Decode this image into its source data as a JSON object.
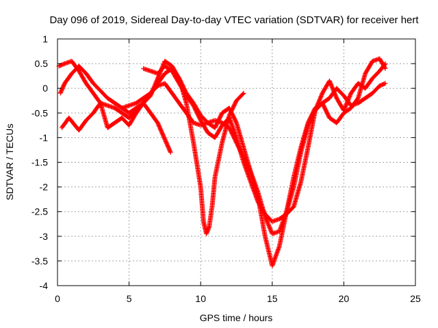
{
  "chart_data": {
    "type": "scatter",
    "title": "Day 096 of 2019, Sidereal Day-to-day VTEC variation (SDTVAR) for receiver hert",
    "xlabel": "GPS time / hours",
    "ylabel": "SDTVAR / TECUs",
    "xlim": [
      0,
      25
    ],
    "ylim": [
      -4,
      1
    ],
    "x_ticks": [
      0,
      5,
      10,
      15,
      20,
      25
    ],
    "y_ticks": [
      -4,
      -3.5,
      -3,
      -2.5,
      -2,
      -1.5,
      -1,
      -0.5,
      0,
      0.5,
      1
    ],
    "x_tick_labels": [
      "0",
      "5",
      "10",
      "15",
      "20",
      "25"
    ],
    "y_tick_labels": [
      "-4",
      "-3.5",
      "-3",
      "-2.5",
      "-2",
      "-1.5",
      "-1",
      "-0.5",
      "0",
      "0.5",
      "1"
    ],
    "grid": true,
    "marker": "+",
    "marker_color": "#ff0000",
    "series": [
      {
        "x": [
          0.1,
          0.5,
          1.0,
          1.5,
          2.0,
          2.5,
          3.0,
          3.5,
          4.0,
          4.5,
          5.0,
          5.5,
          6.0,
          6.5,
          7.0,
          7.3,
          7.6,
          7.9
        ],
        "y": [
          0.45,
          0.5,
          0.55,
          0.35,
          0.1,
          -0.1,
          -0.3,
          -0.35,
          -0.4,
          -0.5,
          -0.6,
          -0.45,
          -0.3,
          -0.5,
          -0.7,
          -0.9,
          -1.1,
          -1.3
        ]
      },
      {
        "x": [
          0.2,
          0.5,
          1.0,
          1.5,
          2.0,
          2.5,
          3.0,
          3.5,
          4.0,
          4.5,
          5.0,
          5.5,
          6.0,
          6.5,
          7.0,
          7.5,
          8.0,
          8.5,
          9.0,
          9.5,
          10.0,
          10.2,
          10.4,
          10.6,
          10.8,
          11.0,
          11.5,
          12.0,
          12.5,
          13.0
        ],
        "y": [
          -0.1,
          0.1,
          0.3,
          0.45,
          0.3,
          0.1,
          -0.05,
          -0.2,
          -0.3,
          -0.4,
          -0.5,
          -0.4,
          -0.3,
          -0.15,
          0.2,
          0.55,
          0.45,
          0.2,
          -0.3,
          -1.1,
          -2.0,
          -2.7,
          -2.95,
          -2.8,
          -2.4,
          -1.8,
          -1.1,
          -0.55,
          -0.25,
          -0.1
        ]
      },
      {
        "x": [
          0.3,
          0.8,
          1.5,
          2.0,
          2.5,
          3.0,
          3.5,
          4.0,
          4.5,
          5.0,
          5.5,
          6.0,
          6.5,
          7.0,
          7.5,
          8.0,
          8.5,
          9.0,
          9.5,
          10.0,
          10.5,
          11.0,
          11.5,
          12.0,
          12.5,
          13.0,
          13.5,
          14.0,
          14.5,
          15.0,
          15.5,
          16.0,
          16.5,
          17.0,
          17.5,
          18.0,
          18.5,
          19.0,
          19.5,
          20.0,
          20.5,
          21.0,
          21.5,
          22.0,
          22.5,
          22.9
        ],
        "y": [
          -0.8,
          -0.6,
          -0.85,
          -0.65,
          -0.5,
          -0.3,
          -0.8,
          -0.7,
          -0.6,
          -0.75,
          -0.5,
          -0.3,
          -0.1,
          0.1,
          0.3,
          0.4,
          0.2,
          -0.1,
          -0.3,
          -0.55,
          -0.7,
          -0.8,
          -0.5,
          -0.4,
          -0.7,
          -1.2,
          -1.7,
          -2.2,
          -3.0,
          -3.6,
          -3.2,
          -2.5,
          -1.8,
          -1.2,
          -0.7,
          -0.4,
          -0.3,
          -0.6,
          -0.7,
          -0.5,
          -0.4,
          -0.2,
          0.3,
          0.55,
          0.6,
          0.4
        ]
      },
      {
        "x": [
          4.5,
          5.0,
          5.5,
          6.0,
          6.5,
          7.0,
          7.5,
          8.0,
          8.5,
          9.0,
          9.5,
          10.0,
          10.5,
          11.0,
          11.5,
          12.0,
          12.5,
          13.0,
          13.5,
          14.0,
          14.5,
          15.0,
          15.5,
          16.0,
          16.5,
          17.0,
          17.5,
          18.0,
          18.5,
          19.0,
          19.5,
          20.0,
          20.5,
          21.0,
          21.5,
          22.0,
          22.5,
          22.9
        ],
        "y": [
          -0.4,
          -0.35,
          -0.3,
          -0.2,
          -0.1,
          0.05,
          0.1,
          -0.1,
          -0.3,
          -0.5,
          -0.7,
          -0.75,
          -0.7,
          -0.65,
          -0.7,
          -0.8,
          -1.1,
          -1.4,
          -1.7,
          -2.1,
          -2.6,
          -2.95,
          -2.9,
          -2.5,
          -2.0,
          -1.3,
          -0.75,
          -0.45,
          -0.3,
          -0.2,
          0.0,
          -0.15,
          -0.35,
          -0.3,
          -0.2,
          -0.1,
          0.05,
          0.1
        ]
      },
      {
        "x": [
          6.0,
          6.5,
          7.0,
          7.5,
          8.0,
          8.5,
          9.0,
          9.5,
          10.0,
          10.5,
          11.0,
          11.5,
          12.0,
          12.5,
          13.0,
          13.5,
          14.0,
          14.5,
          15.0,
          15.5,
          16.0,
          16.5,
          17.0,
          17.5,
          18.0,
          18.5,
          19.0,
          19.5,
          20.0,
          20.5,
          21.0,
          21.5,
          22.0,
          22.5,
          22.9
        ],
        "y": [
          0.4,
          0.35,
          0.3,
          0.45,
          0.35,
          0.1,
          -0.15,
          -0.35,
          -0.65,
          -0.9,
          -1.0,
          -0.75,
          -0.6,
          -1.0,
          -1.5,
          -1.9,
          -2.3,
          -2.55,
          -2.7,
          -2.65,
          -2.55,
          -2.4,
          -1.9,
          -1.2,
          -0.45,
          -0.1,
          0.15,
          -0.2,
          -0.45,
          -0.1,
          0.1,
          0.0,
          0.2,
          0.35,
          0.5
        ]
      }
    ]
  }
}
